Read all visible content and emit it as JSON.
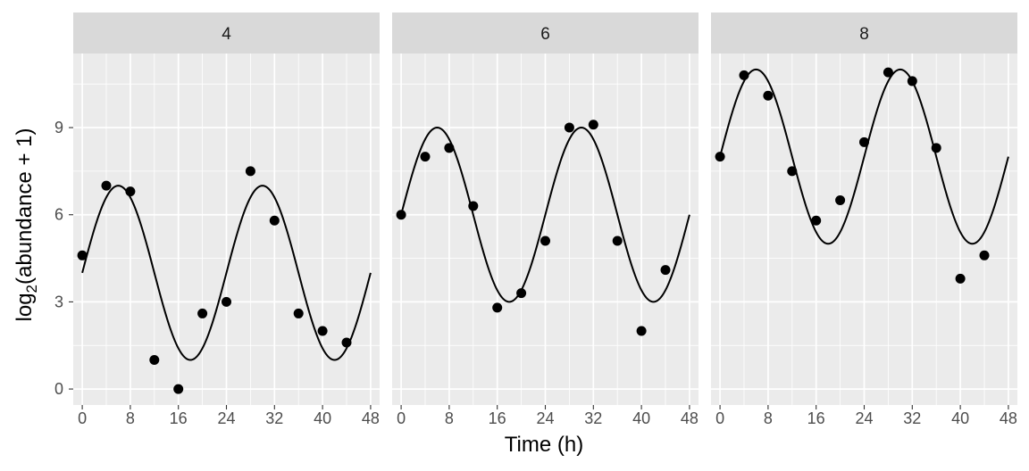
{
  "chart_data": {
    "type": "scatter",
    "facet_variable_values": [
      "4",
      "6",
      "8"
    ],
    "xlabel": "Time (h)",
    "ylabel": {
      "prefix": "log",
      "subscript": "2",
      "suffix": "(abundance + 1)"
    },
    "xlim": [
      -1.5,
      49.5
    ],
    "ylim": [
      -0.55,
      11.55
    ],
    "x_ticks": [
      0,
      8,
      16,
      24,
      32,
      40,
      48
    ],
    "x_tick_labels": [
      "0",
      "8",
      "16",
      "24",
      "32",
      "40",
      "48"
    ],
    "y_ticks": [
      0,
      3,
      6,
      9
    ],
    "y_tick_labels": [
      "0",
      "3",
      "6",
      "9"
    ],
    "grid": true,
    "background": "#ebebeb",
    "strip_background": "#d9d9d9",
    "grid_color": "#ffffff",
    "point_color": "#000000",
    "line_color": "#000000",
    "panels": [
      {
        "strip": "4",
        "points": {
          "x": [
            0,
            4,
            8,
            12,
            16,
            20,
            24,
            28,
            32,
            36,
            40,
            44
          ],
          "y": [
            4.6,
            7.0,
            6.8,
            1.0,
            0.0,
            2.6,
            3.0,
            7.5,
            5.8,
            2.6,
            2.0,
            1.6
          ]
        },
        "curve": {
          "mesor": 4,
          "amplitude": 3,
          "period_h": 24,
          "phase_shift_h": 0
        }
      },
      {
        "strip": "6",
        "points": {
          "x": [
            0,
            4,
            8,
            12,
            16,
            20,
            24,
            28,
            32,
            36,
            40,
            44
          ],
          "y": [
            6.0,
            8.0,
            8.3,
            6.3,
            2.8,
            3.3,
            5.1,
            9.0,
            9.1,
            5.1,
            2.0,
            4.1
          ]
        },
        "curve": {
          "mesor": 6,
          "amplitude": 3,
          "period_h": 24,
          "phase_shift_h": 0
        }
      },
      {
        "strip": "8",
        "points": {
          "x": [
            0,
            4,
            8,
            12,
            16,
            20,
            24,
            28,
            32,
            36,
            40,
            44
          ],
          "y": [
            8.0,
            10.8,
            10.1,
            7.5,
            5.8,
            6.5,
            8.5,
            10.9,
            10.6,
            8.3,
            3.8,
            4.6
          ]
        },
        "curve": {
          "mesor": 8,
          "amplitude": 3,
          "period_h": 24,
          "phase_shift_h": 0
        }
      }
    ]
  }
}
